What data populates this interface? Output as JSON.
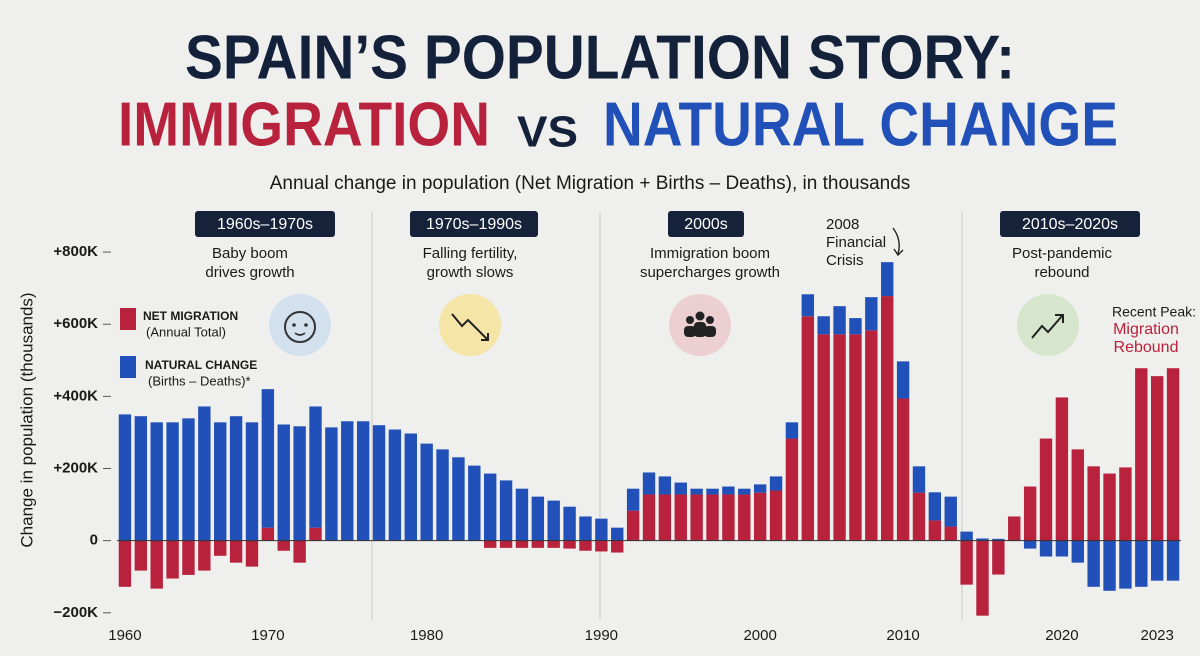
{
  "chart_data": {
    "type": "stacked-bar",
    "title": "SPAIN’S POPULATION STORY:",
    "title_parts": [
      "IMMIGRATION",
      "VS",
      "NATURAL CHANGE"
    ],
    "subtitle": "Annual change in population (Net Migration + Births – Deaths), in thousands",
    "y_label": "Change in population (thousands)",
    "categories": [
      "1960",
      null,
      null,
      null,
      null,
      null,
      null,
      null,
      null,
      "1970",
      null,
      null,
      null,
      null,
      null,
      null,
      null,
      null,
      null,
      "1980",
      null,
      null,
      null,
      null,
      null,
      null,
      null,
      null,
      null,
      null,
      "1990",
      null,
      null,
      null,
      null,
      null,
      null,
      null,
      null,
      null,
      "2000",
      null,
      null,
      null,
      null,
      null,
      null,
      null,
      null,
      "2010",
      null,
      null,
      null,
      null,
      null,
      null,
      null,
      null,
      null,
      "2020",
      null,
      null,
      null,
      null,
      null,
      "2023",
      null
    ],
    "series": [
      {
        "name": "NET MIGRATION",
        "note": "(Annual Total)",
        "color": "#b8223c",
        "values": [
          -128,
          -83,
          -133,
          -105,
          -95,
          -83,
          -42,
          -61,
          -72,
          36,
          -28,
          -61,
          36,
          0,
          0,
          0,
          0,
          0,
          0,
          0,
          0,
          0,
          0,
          -20,
          -20,
          -20,
          -20,
          -20,
          -22,
          -28,
          -30,
          -33,
          83,
          128,
          128,
          128,
          128,
          128,
          128,
          128,
          133,
          139,
          283,
          622,
          572,
          572,
          572,
          583,
          678,
          394,
          133,
          56,
          39,
          -122,
          -208,
          -94,
          67,
          150,
          283,
          397,
          253,
          206,
          186,
          203,
          478,
          456,
          478
        ]
      },
      {
        "name": "NATURAL CHANGE",
        "note": "(Births – Deaths)*",
        "color": "#2150b8",
        "values": [
          350,
          345,
          328,
          328,
          339,
          372,
          328,
          345,
          328,
          384,
          322,
          317,
          336,
          314,
          331,
          331,
          320,
          308,
          297,
          269,
          253,
          231,
          208,
          186,
          167,
          144,
          122,
          111,
          94,
          67,
          61,
          36,
          61,
          61,
          50,
          33,
          16,
          16,
          22,
          16,
          23,
          39,
          45,
          61,
          50,
          78,
          45,
          92,
          94,
          103,
          73,
          78,
          83,
          25,
          6,
          5,
          0,
          -22,
          -44,
          -44,
          -61,
          -128,
          -139,
          -133,
          -128,
          -111,
          -111
        ]
      }
    ],
    "ylim": [
      -220,
      900
    ],
    "yticks": [
      {
        "value": -200,
        "label": "−200K"
      },
      0,
      {
        "value": 200,
        "label": "+200K"
      },
      {
        "value": 400,
        "label": "+400K"
      },
      {
        "value": 600,
        "label": "+600K"
      },
      {
        "value": 800,
        "label": "+800K"
      }
    ],
    "eras": [
      {
        "label": "1960s–1970s",
        "caption": [
          "Baby boom",
          "drives growth"
        ]
      },
      {
        "label": "1970s–1990s",
        "caption": [
          "Falling fertility,",
          "growth slows"
        ]
      },
      {
        "label": "2000s",
        "caption": [
          "Immigration boom",
          "supercharges growth"
        ]
      },
      {
        "label": "2010s–2020s",
        "caption": [
          "Post-pandemic",
          "rebound"
        ]
      }
    ],
    "annotations": [
      [
        "2008",
        "Financial",
        "Crisis"
      ],
      [
        "Recent Peak:",
        "Migration",
        "Rebound"
      ]
    ]
  }
}
